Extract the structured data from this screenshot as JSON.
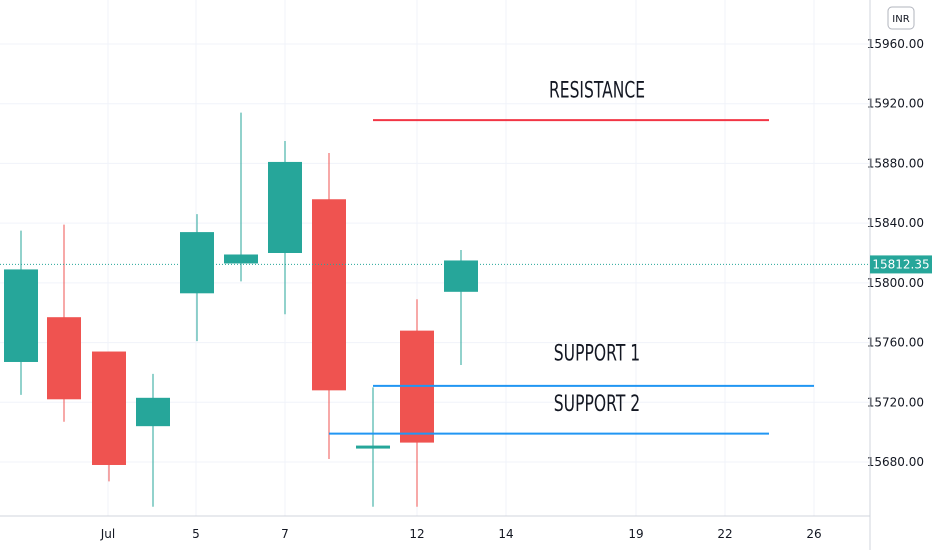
{
  "currency_label": "INR",
  "chart_data": {
    "type": "candlestick",
    "y_ticks": [
      "15680.00",
      "15720.00",
      "15760.00",
      "15800.00",
      "15840.00",
      "15880.00",
      "15920.00",
      "15960.00"
    ],
    "ylim": [
      15650,
      15995
    ],
    "x_ticks": [
      {
        "label": "Jul",
        "day": 1
      },
      {
        "label": "5",
        "day": 5
      },
      {
        "label": "7",
        "day": 7
      },
      {
        "label": "12",
        "day": 12
      },
      {
        "label": "14",
        "day": 14
      },
      {
        "label": "19",
        "day": 19
      },
      {
        "label": "22",
        "day": 22
      },
      {
        "label": "26",
        "day": 26
      }
    ],
    "candles": [
      {
        "day": 29.5,
        "open": 15747,
        "high": 15835,
        "low": 15725,
        "close": 15809
      },
      {
        "day": 30.5,
        "open": 15777,
        "high": 15839,
        "low": 15707,
        "close": 15722
      },
      {
        "day": 1.5,
        "open": 15754,
        "high": 15754,
        "low": 15667,
        "close": 15678
      },
      {
        "day": 2.5,
        "open": 15704,
        "high": 15739,
        "low": 15650,
        "close": 15723
      },
      {
        "day": 4.5,
        "open": 15793,
        "high": 15846,
        "low": 15761,
        "close": 15834
      },
      {
        "day": 5.5,
        "open": 15813,
        "high": 15914,
        "low": 15801,
        "close": 15819
      },
      {
        "day": 6.5,
        "open": 15820,
        "high": 15895,
        "low": 15779,
        "close": 15881
      },
      {
        "day": 7.5,
        "open": 15856,
        "high": 15887,
        "low": 15682,
        "close": 15728
      },
      {
        "day": 8.5,
        "open": 15689,
        "high": 15730,
        "low": 15650,
        "close": 15691
      },
      {
        "day": 9.5,
        "open": 15768,
        "high": 15789,
        "low": 15650,
        "close": 15693
      },
      {
        "day": 10.5,
        "open": 15794,
        "high": 15822,
        "low": 15745,
        "close": 15815
      }
    ],
    "current_price": "15812.35",
    "current_price_value": 15812.35,
    "levels": [
      {
        "name": "RESISTANCE",
        "price": 15909,
        "from_day": 9,
        "to_day": 24,
        "color": "#f23645",
        "label_day": 15.5,
        "label_price": 15924
      },
      {
        "name": "SUPPORT 1",
        "price": 15731,
        "from_day": 9,
        "to_day": 26,
        "color": "#2196f3",
        "label_day": 15.5,
        "label_price": 15748
      },
      {
        "name": "SUPPORT 2",
        "price": 15699,
        "from_day": 8,
        "to_day": 24,
        "color": "#2196f3",
        "label_day": 15.5,
        "label_price": 15714
      }
    ],
    "colors": {
      "up": "#26a69a",
      "down": "#ef5350",
      "grid": "#f0f3fa",
      "axis": "#d1d4dc",
      "price_line": "#26a69a"
    }
  }
}
